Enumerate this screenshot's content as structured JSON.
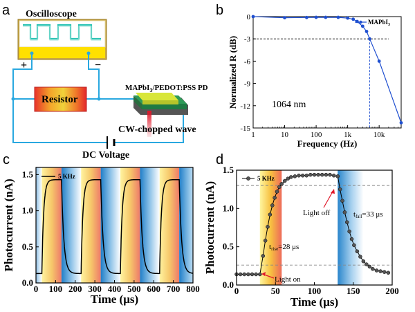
{
  "colors": {
    "wire": "#29a8e0",
    "scope_frame": "#c9a640",
    "scope_yellow": "#ffe000",
    "scope_screen": "#ffffff",
    "scope_trace": "#2ec4b6",
    "device_top": "#d8e63a",
    "device_mid": "#2e9a58",
    "device_base": "#555555",
    "laser": "#e0182a",
    "line_b_marker": "#1f4fd0",
    "line_cd": "#000000",
    "marker_d": "#555555"
  },
  "panel_a": {
    "label": "a",
    "oscilloscope_label": "Oscilloscope",
    "plus": "+",
    "minus": "−",
    "resistor_label": "Resistor",
    "device_label_main": "MAPbI",
    "device_label_sub": "3",
    "device_label_rest": "/PEDOT:PSS PD",
    "laser_label": "CW-chopped wave",
    "dc_label": "DC Voltage"
  },
  "panel_b": {
    "label": "b",
    "annotation": "1064 nm",
    "legend_main": "MAPbI",
    "legend_sub": "3"
  },
  "panel_c": {
    "label": "c",
    "legend": "5 KHz"
  },
  "panel_d": {
    "label": "d",
    "legend": "5 KHz",
    "light_off": "Light off",
    "light_on": "Light on",
    "t_fall_main": "t",
    "t_fall_sub": "fall",
    "t_fall_rest": "=33 μs",
    "t_rise_main": "t",
    "t_rise_sub": "rise",
    "t_rise_rest": "=28 μs"
  },
  "chart_data": [
    {
      "panel": "b",
      "type": "line",
      "xlabel": "Frequency (Hz)",
      "ylabel": "Normalized R (dB)",
      "xscale": "log",
      "xlim": [
        1,
        50000
      ],
      "ylim": [
        -15,
        0
      ],
      "xticks": [
        1,
        10,
        100,
        1000,
        10000
      ],
      "xticklabels": [
        "1",
        "10",
        "100",
        "1k",
        "10k"
      ],
      "yticks": [
        0,
        -3,
        -6,
        -9,
        -12,
        -15
      ],
      "yticklabels": [
        "0",
        "-3",
        "-6",
        "-9",
        "-12",
        "-15"
      ],
      "reference_y": -3,
      "reference_x": 5000,
      "legend_placement": "top-right",
      "series": [
        {
          "name": "MAPbI3",
          "x": [
            1,
            10,
            50,
            100,
            200,
            500,
            1000,
            1500,
            2000,
            3000,
            4000,
            5000,
            10000,
            50000
          ],
          "y": [
            0,
            -0.15,
            -0.12,
            -0.1,
            -0.1,
            -0.1,
            -0.2,
            -0.35,
            -0.65,
            -1.3,
            -2.0,
            -3.0,
            -6.0,
            -14.3
          ]
        }
      ]
    },
    {
      "panel": "c",
      "type": "line",
      "xlabel": "Time (μs)",
      "ylabel": "Photocurrent (nA)",
      "xlim": [
        0,
        800
      ],
      "ylim": [
        0,
        1.6
      ],
      "xticks": [
        0,
        100,
        200,
        300,
        400,
        500,
        600,
        700,
        800
      ],
      "xticklabels": [
        "0",
        "100",
        "200",
        "300",
        "400",
        "500",
        "600",
        "700",
        "800"
      ],
      "yticks": [
        0.0,
        0.5,
        1.0,
        1.5
      ],
      "yticklabels": [
        "0.0",
        "0.5",
        "1.0",
        "1.5"
      ],
      "light_on_intervals": [
        [
          30,
          130
        ],
        [
          230,
          330
        ],
        [
          430,
          530
        ],
        [
          630,
          730
        ]
      ],
      "period_us": 200,
      "rise_start": 30,
      "fall_start": 130,
      "baseline": 0.13,
      "peak": 1.43,
      "legend_placement": "top-left",
      "series": [
        {
          "name": "5 KHz"
        }
      ]
    },
    {
      "panel": "d",
      "type": "line",
      "xlabel": "Time (μs)",
      "ylabel": "Photocurrent (nA)",
      "xlim": [
        0,
        200
      ],
      "ylim": [
        0,
        1.5
      ],
      "xticks": [
        0,
        50,
        100,
        150,
        200
      ],
      "xticklabels": [
        "0",
        "50",
        "100",
        "150",
        "200"
      ],
      "yticks": [
        0.0,
        0.5,
        1.0,
        1.5
      ],
      "yticklabels": [
        "0.0",
        "0.5",
        "1.0",
        "1.5"
      ],
      "light_on_start": 30,
      "light_off": 130,
      "rise_band": [
        30,
        58
      ],
      "fall_band": [
        130,
        163
      ],
      "reference_lines_y": [
        0.26,
        1.3
      ],
      "legend_placement": "top-left",
      "series": [
        {
          "name": "5 KHz",
          "x": [
            0,
            5,
            10,
            15,
            20,
            25,
            30,
            34,
            37,
            40,
            43,
            46,
            49,
            52,
            55,
            58,
            62,
            66,
            70,
            75,
            80,
            85,
            90,
            95,
            100,
            105,
            110,
            115,
            120,
            125,
            130,
            133,
            136,
            139,
            142,
            145,
            148,
            151,
            155,
            159,
            163,
            167,
            171,
            175,
            180,
            185,
            190,
            195
          ],
          "y": [
            0.14,
            0.14,
            0.14,
            0.14,
            0.14,
            0.14,
            0.14,
            0.38,
            0.58,
            0.76,
            0.92,
            1.04,
            1.14,
            1.22,
            1.28,
            1.32,
            1.36,
            1.39,
            1.41,
            1.42,
            1.43,
            1.43,
            1.43,
            1.44,
            1.44,
            1.44,
            1.44,
            1.44,
            1.44,
            1.43,
            1.42,
            1.25,
            1.1,
            0.95,
            0.82,
            0.7,
            0.6,
            0.52,
            0.44,
            0.37,
            0.31,
            0.27,
            0.24,
            0.21,
            0.19,
            0.18,
            0.17,
            0.16
          ]
        }
      ]
    }
  ]
}
